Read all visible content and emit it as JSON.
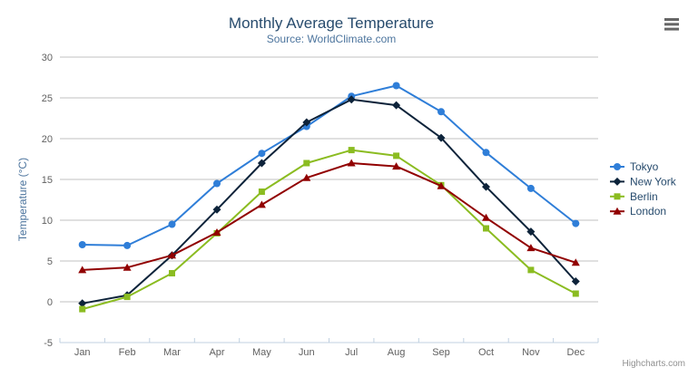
{
  "chart_data": {
    "type": "line",
    "title": "Monthly Average Temperature",
    "subtitle": "Source: WorldClimate.com",
    "xlabel": "",
    "ylabel": "Temperature (°C)",
    "categories": [
      "Jan",
      "Feb",
      "Mar",
      "Apr",
      "May",
      "Jun",
      "Jul",
      "Aug",
      "Sep",
      "Oct",
      "Nov",
      "Dec"
    ],
    "ylim": [
      -5,
      30
    ],
    "yticks": [
      -5,
      0,
      5,
      10,
      15,
      20,
      25,
      30
    ],
    "grid": true,
    "legend_position": "right",
    "credits": "Highcharts.com",
    "series": [
      {
        "name": "Tokyo",
        "color": "#2f7ed8",
        "marker": "circle",
        "values": [
          7.0,
          6.9,
          9.5,
          14.5,
          18.2,
          21.5,
          25.2,
          26.5,
          23.3,
          18.3,
          13.9,
          9.6
        ]
      },
      {
        "name": "New York",
        "color": "#0d233a",
        "marker": "diamond",
        "values": [
          -0.2,
          0.8,
          5.7,
          11.3,
          17.0,
          22.0,
          24.8,
          24.1,
          20.1,
          14.1,
          8.6,
          2.5
        ]
      },
      {
        "name": "Berlin",
        "color": "#8bbc21",
        "marker": "square",
        "values": [
          -0.9,
          0.6,
          3.5,
          8.4,
          13.5,
          17.0,
          18.6,
          17.9,
          14.3,
          9.0,
          3.9,
          1.0
        ]
      },
      {
        "name": "London",
        "color": "#910000",
        "marker": "triangle",
        "values": [
          3.9,
          4.2,
          5.7,
          8.5,
          11.9,
          15.2,
          17.0,
          16.6,
          14.2,
          10.3,
          6.6,
          4.8
        ]
      }
    ]
  },
  "icons": {
    "context_menu": "hamburger-menu-icon"
  },
  "colors": {
    "background": "#ffffff",
    "title_text": "#274b6d",
    "subtitle_text": "#4d759e",
    "axis_title_text": "#4d759e",
    "axis_labels": "#606060",
    "grid_line": "#c0c0c0",
    "axis_line": "#c0d0e0",
    "legend_text": "#274b6d",
    "credits_text": "#909090",
    "menu_icon": "#666666",
    "series": [
      "#2f7ed8",
      "#0d233a",
      "#8bbc21",
      "#910000"
    ]
  }
}
